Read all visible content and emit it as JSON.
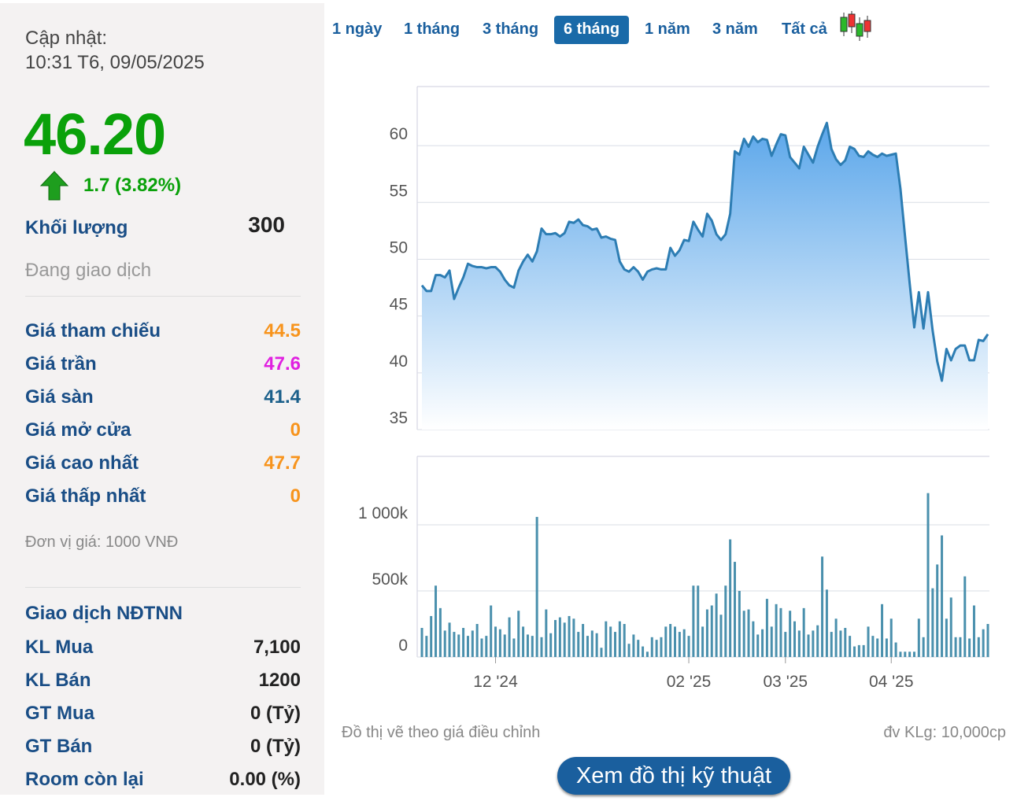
{
  "panel": {
    "update_label": "Cập nhật:",
    "update_time": "10:31 T6, 09/05/2025",
    "price": "46.20",
    "change": "1.7 (3.82%)",
    "volume_label": "Khối lượng",
    "volume": 300,
    "status": "Đang giao dịch",
    "rows": [
      {
        "label": "Giá tham chiếu",
        "value": 44.5,
        "color": "#f7941d"
      },
      {
        "label": "Giá trần",
        "value": 47.6,
        "color": "#e020e0"
      },
      {
        "label": "Giá sàn",
        "value": 41.4,
        "color": "#1a5f8a"
      },
      {
        "label": "Giá mở cửa",
        "value": 0,
        "color": "#f7941d"
      },
      {
        "label": "Giá cao nhất",
        "value": 47.7,
        "color": "#f7941d"
      },
      {
        "label": "Giá thấp nhất",
        "value": 0,
        "color": "#f7941d"
      }
    ],
    "unit_note": "Đơn vị giá: 1000 VNĐ",
    "foreign_title": "Giao dịch NĐTNN",
    "foreign_rows": [
      {
        "label": "KL Mua",
        "value": "7,100"
      },
      {
        "label": "KL Bán",
        "value": 1200
      },
      {
        "label": "GT Mua",
        "value": "0 (Tỷ)"
      },
      {
        "label": "GT Bán",
        "value": "0 (Tỷ)"
      },
      {
        "label": "Room còn lại",
        "value": "0.00 (%)"
      }
    ]
  },
  "tabs": {
    "items": [
      "1 ngày",
      "1 tháng",
      "3 tháng",
      "6 tháng",
      "1 năm",
      "3 năm",
      "Tất cả"
    ],
    "active": 3
  },
  "notes": {
    "left": "Đồ thị vẽ theo giá điều chỉnh",
    "right": "đv KLg: 10,000cp"
  },
  "button": "Xem đồ thị kỹ thuật",
  "chart_data": [
    {
      "type": "line",
      "fill": true,
      "color": "#2d7db3",
      "grid": true,
      "ylim": [
        35,
        65.2
      ],
      "yticks": [
        35,
        40,
        45,
        50,
        55,
        60
      ],
      "values": [
        47.7,
        47.2,
        47.2,
        48.6,
        48.6,
        48.4,
        49.0,
        46.5,
        47.5,
        48.4,
        49.6,
        49.4,
        49.3,
        49.3,
        49.2,
        49.3,
        49.3,
        48.9,
        48.2,
        47.7,
        47.5,
        49.0,
        49.8,
        50.4,
        49.8,
        50.7,
        52.7,
        52.2,
        52.2,
        52.3,
        52.0,
        52.3,
        53.3,
        53.2,
        53.5,
        53.0,
        52.9,
        52.6,
        52.7,
        51.9,
        52.0,
        51.8,
        51.7,
        49.8,
        49.1,
        48.9,
        49.3,
        48.9,
        48.2,
        48.9,
        49.1,
        49.2,
        49.1,
        49.1,
        51.0,
        50.3,
        50.8,
        51.7,
        51.6,
        53.3,
        52.6,
        52.0,
        54.0,
        53.4,
        52.2,
        51.7,
        52.2,
        54.0,
        59.5,
        59.2,
        60.6,
        59.9,
        60.8,
        60.3,
        60.6,
        60.5,
        59.1,
        60.1,
        61.0,
        60.9,
        59.0,
        58.5,
        58.0,
        59.9,
        59.2,
        58.5,
        59.9,
        61.0,
        62.0,
        59.7,
        58.8,
        58.3,
        58.7,
        59.9,
        59.7,
        59.1,
        59.0,
        59.5,
        59.2,
        59.0,
        59.3,
        59.1,
        59.2,
        59.3,
        56.2,
        52.0,
        47.9,
        44.0,
        47.1,
        43.9,
        47.1,
        43.7,
        41.0,
        39.3,
        42.1,
        41.1,
        42.1,
        42.4,
        42.4,
        41.1,
        41.1,
        42.9,
        42.8,
        43.4
      ]
    },
    {
      "type": "bar",
      "color": "#4a90ad",
      "grid": true,
      "ylim": [
        0,
        1518
      ],
      "yticks": [
        0,
        {
          "value": 500,
          "label": "500k"
        },
        {
          "value": 1000,
          "label": "1 000k"
        }
      ],
      "categories": [
        null,
        null,
        null,
        null,
        null,
        null,
        null,
        null,
        null,
        null,
        null,
        null,
        null,
        null,
        null,
        null,
        "12 '24",
        null,
        null,
        null,
        null,
        null,
        null,
        null,
        null,
        null,
        null,
        null,
        null,
        null,
        null,
        null,
        null,
        null,
        null,
        null,
        null,
        null,
        null,
        null,
        null,
        null,
        null,
        null,
        null,
        null,
        null,
        null,
        null,
        null,
        null,
        null,
        null,
        null,
        null,
        null,
        null,
        null,
        "02 '25",
        null,
        null,
        null,
        null,
        null,
        null,
        null,
        null,
        null,
        null,
        null,
        null,
        null,
        null,
        null,
        null,
        null,
        null,
        null,
        null,
        "03 '25",
        null,
        null,
        null,
        null,
        null,
        null,
        null,
        null,
        null,
        null,
        null,
        null,
        null,
        null,
        null,
        null,
        null,
        null,
        null,
        null,
        null,
        null,
        "04 '25",
        null,
        null,
        null,
        null,
        null,
        null,
        null,
        null,
        null,
        null,
        null,
        null,
        null,
        null,
        null,
        null,
        null,
        null,
        null,
        null,
        null
      ],
      "values": [
        220,
        160,
        310,
        540,
        370,
        200,
        260,
        190,
        170,
        220,
        160,
        200,
        250,
        140,
        160,
        390,
        230,
        210,
        170,
        300,
        140,
        350,
        230,
        170,
        160,
        1060,
        150,
        360,
        180,
        280,
        300,
        260,
        310,
        290,
        190,
        250,
        160,
        200,
        180,
        70,
        270,
        230,
        190,
        270,
        250,
        100,
        170,
        130,
        80,
        40,
        150,
        130,
        150,
        230,
        250,
        230,
        190,
        210,
        160,
        540,
        540,
        230,
        360,
        390,
        480,
        320,
        540,
        890,
        720,
        500,
        350,
        360,
        270,
        170,
        210,
        440,
        230,
        400,
        370,
        190,
        350,
        270,
        200,
        370,
        170,
        200,
        240,
        760,
        510,
        190,
        290,
        200,
        220,
        160,
        80,
        90,
        90,
        230,
        160,
        140,
        400,
        140,
        290,
        110,
        40,
        40,
        40,
        40,
        290,
        150,
        1240,
        520,
        700,
        920,
        290,
        450,
        150,
        150,
        610,
        140,
        390,
        150,
        210,
        250
      ]
    }
  ]
}
